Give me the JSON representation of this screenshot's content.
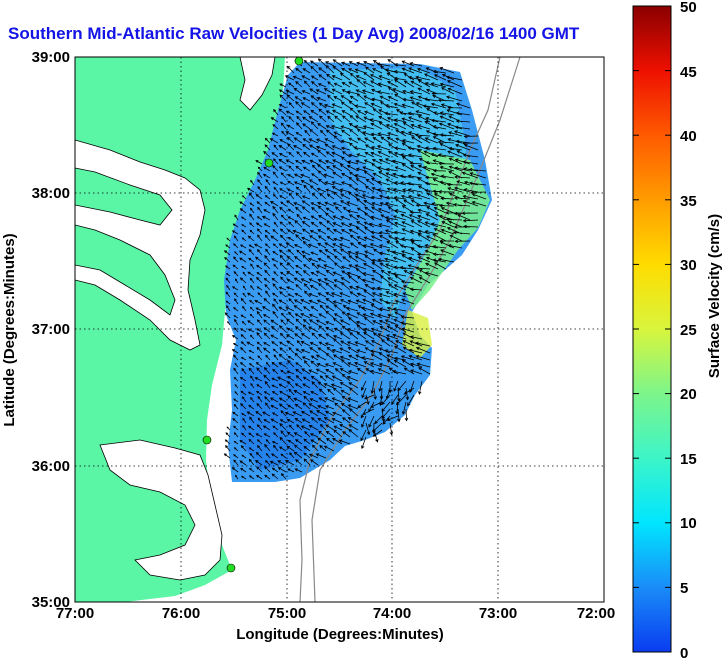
{
  "title": "Southern Mid-Atlantic Raw Velocities (1 Day Avg) 2008/02/16 1400 GMT",
  "map": {
    "xlabel": "Longitude (Degrees:Minutes)",
    "ylabel": "Latitude (Degrees:Minutes)",
    "lon_ticks": [
      "77:00",
      "76:00",
      "75:00",
      "74:00",
      "73:00",
      "72:00"
    ],
    "lat_ticks": [
      "35:00",
      "36:00",
      "37:00",
      "38:00",
      "39:00"
    ],
    "lon_range": [
      -77.0,
      -72.0
    ],
    "lat_range": [
      35.0,
      39.0
    ],
    "grid": "dotted",
    "land_color": "#5bf5a6",
    "field_color": "#3a9bf2",
    "vector_color": "#000000",
    "station_color": "#22dd22"
  },
  "colorbar": {
    "label": "Surface Velocity (cm/s)",
    "ticks": [
      "0",
      "5",
      "10",
      "15",
      "20",
      "25",
      "30",
      "35",
      "40",
      "45",
      "50"
    ],
    "range": [
      0,
      50
    ],
    "colors": [
      "#0a3cf0",
      "#1a8cf8",
      "#00e6ff",
      "#3cf5c8",
      "#7df58a",
      "#d8f53c",
      "#ffdc00",
      "#ff9c00",
      "#ff5a00",
      "#ee1000",
      "#8a0000"
    ]
  }
}
